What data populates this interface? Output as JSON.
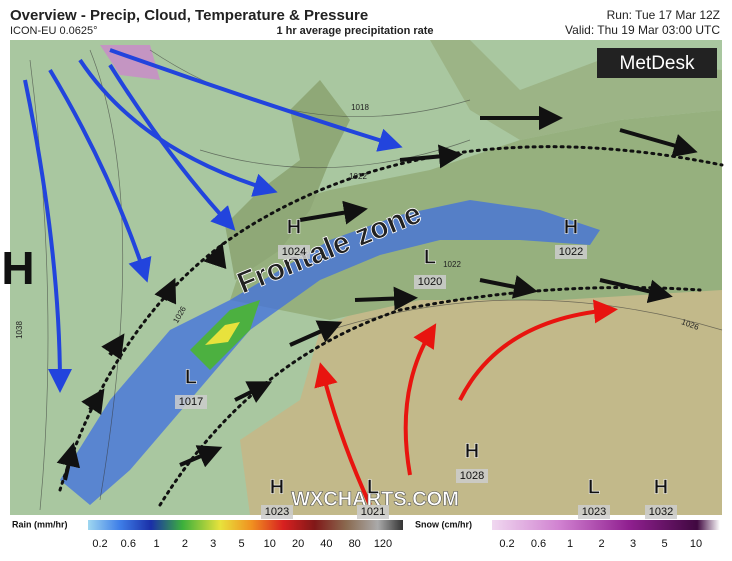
{
  "header": {
    "title": "Overview - Precip, Cloud, Temperature & Pressure",
    "model": "ICON-EU 0.0625°",
    "field": "1 hr average precipitation rate",
    "run": "Run: Tue 17 Mar 12Z",
    "valid": "Valid: Thu 19 Mar 03:00 UTC",
    "logo": "MetDesk"
  },
  "map": {
    "annotation": "Frontale zone",
    "watermark": "WXCHARTS.COM",
    "big_high": "H",
    "pressure_centers": [
      {
        "kind": "H",
        "value": "1024"
      },
      {
        "kind": "L",
        "value": "1020"
      },
      {
        "kind": "H",
        "value": "1022"
      },
      {
        "kind": "L",
        "value": "1017"
      },
      {
        "kind": "H",
        "value": "1028"
      },
      {
        "kind": "H",
        "value": "1023"
      },
      {
        "kind": "L",
        "value": "1021"
      },
      {
        "kind": "L",
        "value": "1023"
      },
      {
        "kind": "H",
        "value": "1032"
      }
    ],
    "isobar_labels": [
      "1018",
      "1022",
      "1026",
      "1038",
      "1026",
      "1022"
    ]
  },
  "legend": {
    "rain": {
      "title": "Rain (mm/hr)",
      "ticks": [
        0.2,
        0.6,
        1,
        2,
        3,
        5,
        10,
        20,
        40,
        80,
        120
      ]
    },
    "snow": {
      "title": "Snow (cm/hr)",
      "ticks": [
        0.2,
        0.6,
        1,
        2,
        3,
        5,
        10
      ]
    }
  }
}
